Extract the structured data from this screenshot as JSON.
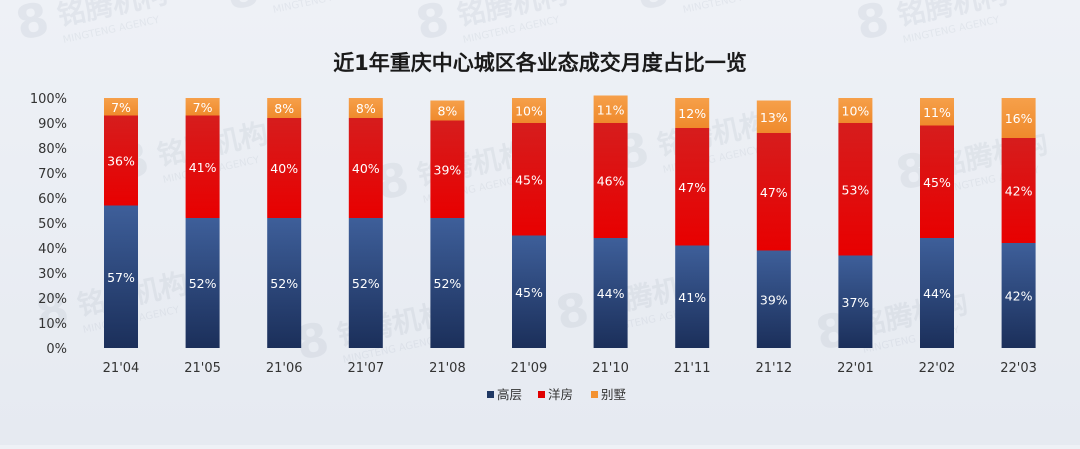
{
  "chart_data": {
    "type": "bar",
    "stacked": true,
    "percent": true,
    "title": "近1年重庆中心城区各业态成交月度占比一览",
    "categories": [
      "21'04",
      "21'05",
      "21'06",
      "21'07",
      "21'08",
      "21'09",
      "21'10",
      "21'11",
      "21'12",
      "22'01",
      "22'02",
      "22'03"
    ],
    "series": [
      {
        "name": "高层",
        "color": "#1f3864",
        "values": [
          57,
          52,
          52,
          52,
          52,
          45,
          44,
          41,
          39,
          37,
          44,
          42
        ],
        "labels": [
          "57%",
          "52%",
          "52%",
          "52%",
          "52%",
          "45%",
          "44%",
          "41%",
          "39%",
          "37%",
          "44%",
          "42%"
        ]
      },
      {
        "name": "洋房",
        "color": "#e00000",
        "values": [
          36,
          41,
          40,
          40,
          39,
          45,
          46,
          47,
          47,
          53,
          45,
          42
        ],
        "labels": [
          "36%",
          "41%",
          "40%",
          "40%",
          "39%",
          "45%",
          "46%",
          "47%",
          "47%",
          "53%",
          "45%",
          "42%"
        ]
      },
      {
        "name": "别墅",
        "color": "#f39232",
        "values": [
          7,
          7,
          8,
          8,
          8,
          10,
          11,
          12,
          13,
          10,
          11,
          16
        ],
        "labels": [
          "7%",
          "7%",
          "8%",
          "8%",
          "8%",
          "10%",
          "11%",
          "12%",
          "13%",
          "10%",
          "11%",
          "16%"
        ]
      }
    ],
    "yticks": [
      "0%",
      "10%",
      "20%",
      "30%",
      "40%",
      "50%",
      "60%",
      "70%",
      "80%",
      "90%",
      "100%"
    ],
    "ylim": [
      0,
      100
    ],
    "xlabel": "",
    "ylabel": "",
    "grid": false,
    "legend_position": "bottom-center"
  },
  "watermark": {
    "brand_cn": "铭腾机构",
    "brand_en": "MINGTENG AGENCY",
    "logo_mark": "8"
  }
}
